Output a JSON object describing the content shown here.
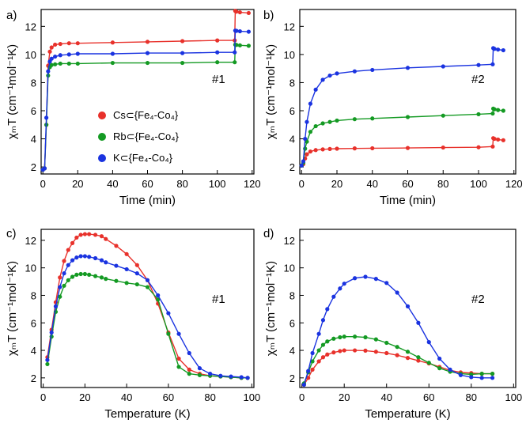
{
  "colors": {
    "Cs": "#e8312b",
    "Rb": "#149a23",
    "K": "#1a33e0"
  },
  "legend": [
    {
      "key": "Cs",
      "label": "Cs⊂{Fe₄-Co₄}"
    },
    {
      "key": "Rb",
      "label": "Rb⊂{Fe₄-Co₄}"
    },
    {
      "key": "K",
      "label": "K⊂{Fe₄-Co₄}"
    }
  ],
  "ylabel": "χₘT (cm⁻¹mol⁻¹K)",
  "chart_data": [
    {
      "panel": "a)",
      "type": "line",
      "annotation": "#1",
      "xlabel": "Time (min)",
      "xlim": [
        -1,
        121
      ],
      "ylim": [
        1.5,
        13.2
      ],
      "xticks": [
        0,
        20,
        40,
        60,
        80,
        100,
        120
      ],
      "yticks": [
        2,
        4,
        6,
        8,
        10,
        12
      ],
      "legend_position": "center-left",
      "series": [
        {
          "key": "Cs",
          "x": [
            0,
            1,
            2,
            3,
            4,
            5,
            7,
            10,
            15,
            20,
            40,
            60,
            80,
            100,
            110,
            110.3,
            111,
            113,
            118
          ],
          "y": [
            1.8,
            1.9,
            5,
            9.2,
            10.2,
            10.5,
            10.7,
            10.75,
            10.8,
            10.8,
            10.85,
            10.9,
            10.95,
            11,
            11,
            13.1,
            13.05,
            13,
            12.95
          ]
        },
        {
          "key": "Rb",
          "x": [
            0,
            1,
            2,
            3,
            4,
            5,
            7,
            10,
            15,
            20,
            40,
            60,
            80,
            100,
            110,
            110.3,
            111,
            113,
            118
          ],
          "y": [
            1.8,
            1.9,
            5,
            8.5,
            9.1,
            9.25,
            9.3,
            9.35,
            9.35,
            9.35,
            9.4,
            9.4,
            9.4,
            9.45,
            9.45,
            10.7,
            10.68,
            10.65,
            10.62
          ]
        },
        {
          "key": "K",
          "x": [
            0,
            1,
            2,
            3,
            4,
            5,
            7,
            10,
            15,
            20,
            40,
            60,
            80,
            100,
            110,
            110.3,
            111,
            113,
            118
          ],
          "y": [
            1.8,
            1.9,
            5.5,
            8.8,
            9.5,
            9.7,
            9.85,
            9.95,
            10,
            10.05,
            10.05,
            10.1,
            10.1,
            10.15,
            10.15,
            11.7,
            11.68,
            11.65,
            11.62
          ]
        }
      ]
    },
    {
      "panel": "b)",
      "type": "line",
      "annotation": "#2",
      "xlabel": "Time (min)",
      "xlim": [
        -1,
        121
      ],
      "ylim": [
        1.5,
        13.2
      ],
      "xticks": [
        0,
        20,
        40,
        60,
        80,
        100,
        120
      ],
      "yticks": [
        2,
        4,
        6,
        8,
        10,
        12
      ],
      "series": [
        {
          "key": "Cs",
          "x": [
            0,
            1,
            2,
            3,
            5,
            8,
            12,
            16,
            20,
            30,
            40,
            60,
            80,
            100,
            108,
            108.3,
            109,
            111,
            114
          ],
          "y": [
            2.1,
            2.2,
            2.6,
            2.9,
            3.1,
            3.2,
            3.25,
            3.28,
            3.3,
            3.32,
            3.33,
            3.35,
            3.38,
            3.4,
            3.45,
            4.05,
            4,
            3.95,
            3.9
          ]
        },
        {
          "key": "Rb",
          "x": [
            0,
            1,
            2,
            3,
            5,
            8,
            12,
            16,
            20,
            30,
            40,
            60,
            80,
            100,
            108,
            108.3,
            109,
            111,
            114
          ],
          "y": [
            2.1,
            2.3,
            3.3,
            3.8,
            4.5,
            4.9,
            5.1,
            5.2,
            5.3,
            5.4,
            5.45,
            5.55,
            5.65,
            5.75,
            5.8,
            6.15,
            6.1,
            6.05,
            6
          ],
          "note": ""
        },
        {
          "key": "K",
          "x": [
            0,
            1,
            2,
            3,
            5,
            8,
            12,
            16,
            20,
            30,
            40,
            60,
            80,
            100,
            108,
            108.3,
            109,
            111,
            114
          ],
          "y": [
            2.1,
            2.4,
            4,
            5.2,
            6.5,
            7.5,
            8.2,
            8.5,
            8.65,
            8.8,
            8.9,
            9.05,
            9.15,
            9.25,
            9.3,
            10.45,
            10.4,
            10.35,
            10.3
          ]
        }
      ]
    },
    {
      "panel": "c)",
      "type": "line",
      "annotation": "#1",
      "xlabel": "Temperature (K)",
      "xlim": [
        -1,
        101
      ],
      "ylim": [
        1.3,
        12.8
      ],
      "xticks": [
        0,
        20,
        40,
        60,
        80,
        100
      ],
      "yticks": [
        2,
        4,
        6,
        8,
        10,
        12
      ],
      "series": [
        {
          "key": "Cs",
          "x": [
            2,
            4,
            6,
            8,
            10,
            12,
            14,
            16,
            18,
            20,
            22,
            25,
            28,
            30,
            35,
            40,
            45,
            50,
            55,
            60,
            65,
            70,
            75,
            80,
            85,
            90,
            95,
            98
          ],
          "y": [
            3.5,
            5.5,
            7.5,
            9.3,
            10.5,
            11.3,
            11.8,
            12.2,
            12.4,
            12.45,
            12.45,
            12.4,
            12.3,
            12.1,
            11.6,
            11,
            10.2,
            9.1,
            7.4,
            5.3,
            3.4,
            2.6,
            2.3,
            2.15,
            2.1,
            2.05,
            2,
            2
          ]
        },
        {
          "key": "Rb",
          "x": [
            2,
            4,
            6,
            8,
            10,
            12,
            14,
            16,
            18,
            20,
            22,
            25,
            28,
            30,
            35,
            40,
            45,
            50,
            55,
            60,
            65,
            70,
            75,
            80,
            85,
            90,
            95,
            98
          ],
          "y": [
            3,
            5,
            6.8,
            7.9,
            8.7,
            9.1,
            9.35,
            9.5,
            9.55,
            9.55,
            9.5,
            9.4,
            9.3,
            9.2,
            9.05,
            8.9,
            8.8,
            8.6,
            7.7,
            5.2,
            2.8,
            2.3,
            2.2,
            2.15,
            2.1,
            2.05,
            2,
            2
          ]
        },
        {
          "key": "K",
          "x": [
            2,
            4,
            6,
            8,
            10,
            12,
            14,
            16,
            18,
            20,
            22,
            25,
            28,
            30,
            35,
            40,
            45,
            50,
            55,
            60,
            65,
            70,
            75,
            80,
            85,
            90,
            95,
            98
          ],
          "y": [
            3.3,
            5.3,
            7.2,
            8.6,
            9.6,
            10.2,
            10.55,
            10.75,
            10.85,
            10.85,
            10.8,
            10.7,
            10.55,
            10.4,
            10.15,
            9.9,
            9.6,
            9.1,
            8,
            6.7,
            5.2,
            3.8,
            2.7,
            2.3,
            2.15,
            2.1,
            2.05,
            2
          ]
        }
      ]
    },
    {
      "panel": "d)",
      "type": "line",
      "annotation": "#2",
      "xlabel": "Temperature (K)",
      "xlim": [
        -1,
        101
      ],
      "ylim": [
        1.3,
        12.8
      ],
      "xticks": [
        0,
        20,
        40,
        60,
        80,
        100
      ],
      "yticks": [
        2,
        4,
        6,
        8,
        10,
        12
      ],
      "series": [
        {
          "key": "Cs",
          "x": [
            1,
            3,
            5,
            8,
            10,
            12,
            15,
            18,
            20,
            25,
            30,
            35,
            40,
            45,
            50,
            55,
            60,
            65,
            70,
            75,
            80,
            85,
            90
          ],
          "y": [
            1.5,
            2,
            2.6,
            3.2,
            3.5,
            3.7,
            3.85,
            3.95,
            4,
            4,
            3.98,
            3.9,
            3.8,
            3.65,
            3.45,
            3.25,
            3.05,
            2.8,
            2.55,
            2.4,
            2.35,
            2.3,
            2.3
          ]
        },
        {
          "key": "Rb",
          "x": [
            1,
            3,
            5,
            8,
            10,
            12,
            15,
            18,
            20,
            25,
            30,
            35,
            40,
            45,
            50,
            55,
            60,
            65,
            70,
            75,
            80,
            85,
            90
          ],
          "y": [
            1.6,
            2.4,
            3.2,
            4,
            4.4,
            4.65,
            4.85,
            4.95,
            5,
            5,
            4.95,
            4.8,
            4.55,
            4.25,
            3.9,
            3.5,
            3.1,
            2.7,
            2.45,
            2.3,
            2.25,
            2.3,
            2.3
          ]
        },
        {
          "key": "K",
          "x": [
            1,
            3,
            5,
            8,
            10,
            12,
            15,
            18,
            20,
            25,
            30,
            35,
            40,
            45,
            50,
            55,
            60,
            65,
            70,
            75,
            80,
            85,
            90
          ],
          "y": [
            1.5,
            2.5,
            3.8,
            5.2,
            6.2,
            7,
            7.9,
            8.5,
            8.85,
            9.25,
            9.35,
            9.2,
            8.9,
            8.2,
            7.2,
            6,
            4.6,
            3.4,
            2.6,
            2.2,
            2.05,
            2,
            2
          ]
        }
      ]
    }
  ]
}
